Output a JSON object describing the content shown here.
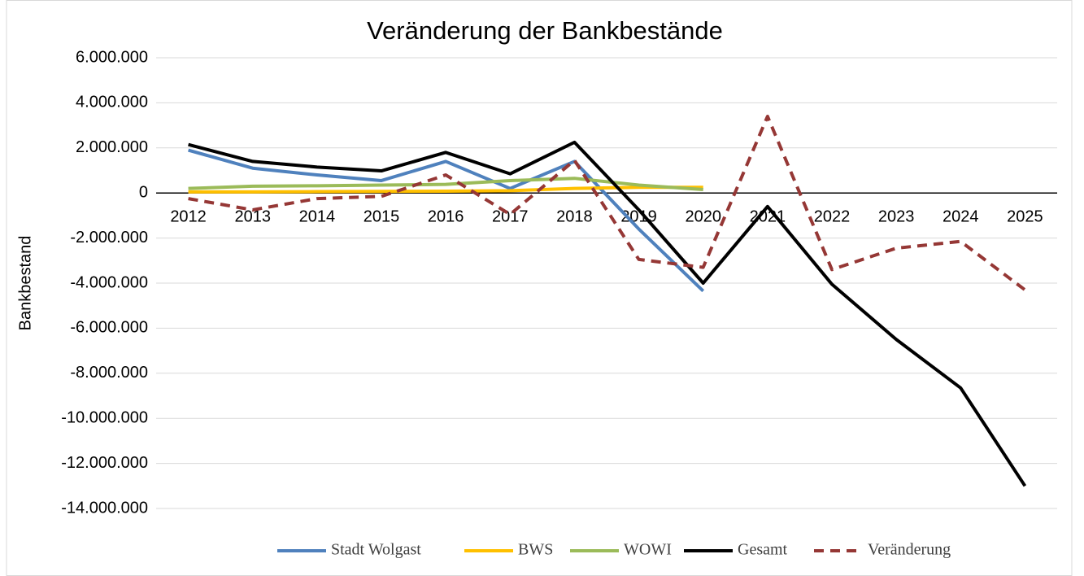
{
  "chart_data": {
    "type": "line",
    "title": "Veränderung der Bankbestände",
    "y_label": "Bankbestand",
    "categories": [
      "2012",
      "2013",
      "2014",
      "2015",
      "2016",
      "2017",
      "2018",
      "2019",
      "2020",
      "2021",
      "2022",
      "2023",
      "2024",
      "2025"
    ],
    "series": [
      {
        "name": "Stadt Wolgast",
        "color": "#4f81bd",
        "dashed": false,
        "values": [
          1900000,
          1100000,
          800000,
          550000,
          1400000,
          200000,
          1400000,
          -1600000,
          -4350000,
          null,
          null,
          null,
          null,
          null
        ]
      },
      {
        "name": "BWS",
        "color": "#ffc000",
        "dashed": false,
        "values": [
          50000,
          50000,
          60000,
          70000,
          80000,
          100000,
          200000,
          250000,
          250000,
          null,
          null,
          null,
          null,
          null
        ]
      },
      {
        "name": "WOWI",
        "color": "#9bbb59",
        "dashed": false,
        "values": [
          200000,
          300000,
          320000,
          350000,
          380000,
          550000,
          650000,
          350000,
          150000,
          null,
          null,
          null,
          null,
          null
        ]
      },
      {
        "name": "Gesamt",
        "color": "#000000",
        "dashed": false,
        "values": [
          2150000,
          1400000,
          1150000,
          980000,
          1800000,
          850000,
          2250000,
          -750000,
          -4000000,
          -600000,
          -4050000,
          -6500000,
          -8650000,
          -13000000
        ]
      },
      {
        "name": "Veränderung",
        "color": "#953735",
        "dashed": true,
        "values": [
          -250000,
          -750000,
          -250000,
          -150000,
          800000,
          -950000,
          1450000,
          -2950000,
          -3300000,
          3400000,
          -3400000,
          -2450000,
          -2150000,
          -4300000
        ]
      }
    ],
    "ylim": [
      -14000000,
      6000000
    ],
    "yticks": [
      {
        "value": 6000000,
        "label": "6.000.000"
      },
      {
        "value": 4000000,
        "label": "4.000.000"
      },
      {
        "value": 2000000,
        "label": "2.000.000"
      },
      0,
      {
        "value": -2000000,
        "label": "-2.000.000"
      },
      {
        "value": -4000000,
        "label": "-4.000.000"
      },
      {
        "value": -6000000,
        "label": "-6.000.000"
      },
      {
        "value": -8000000,
        "label": "-8.000.000"
      },
      {
        "value": -10000000,
        "label": "-10.000.000"
      },
      {
        "value": -12000000,
        "label": "-12.000.000"
      },
      {
        "value": -14000000,
        "label": "-14.000.000"
      }
    ],
    "grid": true,
    "legend": "bottom"
  }
}
